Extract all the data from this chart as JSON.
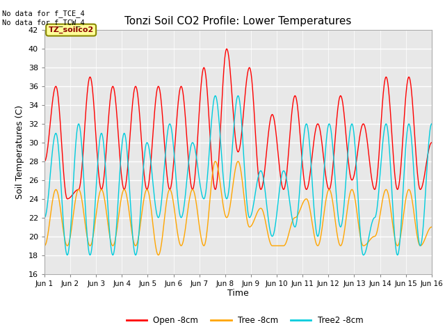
{
  "title": "Tonzi Soil CO2 Profile: Lower Temperatures",
  "ylabel": "Soil Temperatures (C)",
  "xlabel": "Time",
  "top_note": "No data for f_TCE_4\nNo data for f_TCW_4",
  "legend_label": "TZ_soilco2",
  "ylim": [
    16,
    42
  ],
  "yticks": [
    16,
    18,
    20,
    22,
    24,
    26,
    28,
    30,
    32,
    34,
    36,
    38,
    40,
    42
  ],
  "xtick_labels": [
    "Jun 1",
    "Jun 2",
    "Jun 3",
    "Jun 4",
    "Jun 5",
    "Jun 6",
    "Jun 7",
    "Jun 8",
    "Jun 9",
    "Jun 10",
    "Jun 11",
    "Jun 12",
    "Jun 13",
    "Jun 14",
    "Jun 15",
    "Jun 16"
  ],
  "line_colors": {
    "open": "#FF0000",
    "tree": "#FFA500",
    "tree2": "#00CCDD"
  },
  "legend_entries": [
    "Open -8cm",
    "Tree -8cm",
    "Tree2 -8cm"
  ],
  "background_color": "#E8E8E8",
  "grid_color": "#FFFFFF",
  "open_data": [
    28,
    36,
    24,
    25,
    37,
    25,
    36,
    25,
    36,
    25,
    36,
    25,
    36,
    25,
    38,
    25,
    40,
    29,
    38,
    25,
    33,
    25,
    35,
    25,
    32,
    25,
    35,
    26,
    32,
    25,
    37,
    25,
    37,
    25,
    30
  ],
  "tree_data": [
    19,
    25,
    19,
    25,
    19,
    25,
    19,
    25,
    19,
    25,
    18,
    25,
    19,
    25,
    19,
    28,
    22,
    28,
    21,
    23,
    19,
    19,
    22,
    24,
    19,
    25,
    19,
    25,
    19,
    20,
    25,
    19,
    25,
    19,
    21
  ],
  "tree2_data": [
    22,
    31,
    18,
    32,
    18,
    31,
    18,
    31,
    18,
    30,
    22,
    32,
    22,
    30,
    24,
    35,
    24,
    35,
    22,
    27,
    20,
    27,
    21,
    32,
    20,
    32,
    21,
    32,
    18,
    22,
    32,
    18,
    32,
    19,
    32
  ]
}
